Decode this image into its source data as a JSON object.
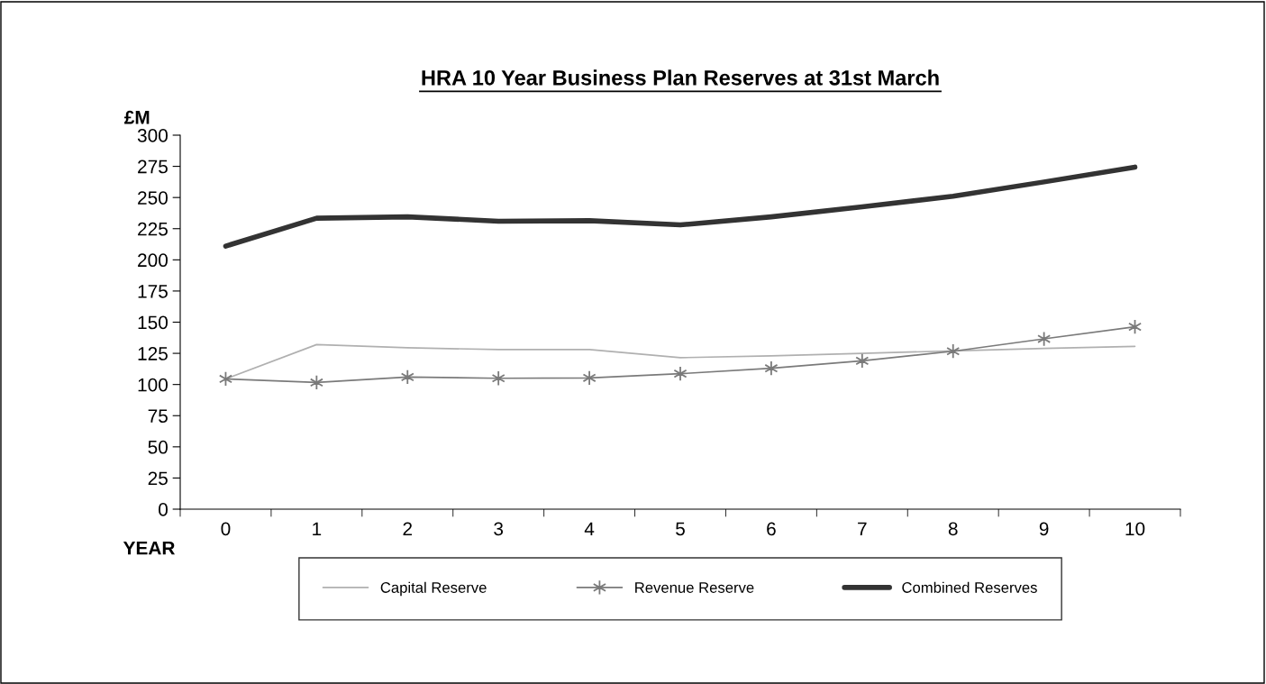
{
  "chart_data": {
    "type": "line",
    "title": "HRA 10 Year Business Plan Reserves at 31st March",
    "xlabel": "YEAR",
    "ylabel": "£M",
    "categories": [
      "0",
      "1",
      "2",
      "3",
      "4",
      "5",
      "6",
      "7",
      "8",
      "9",
      "10"
    ],
    "series": [
      {
        "name": "Capital Reserve",
        "color": "#b0b0b0",
        "marker": "none",
        "values": [
          104.5,
          132,
          129.5,
          128,
          128,
          121.5,
          123,
          125,
          127,
          129,
          130.6
        ]
      },
      {
        "name": "Revenue Reserve",
        "color": "#7a7a7a",
        "marker": "cross",
        "values": [
          104.5,
          101.6,
          106,
          105,
          105.3,
          108.7,
          113,
          119,
          126.7,
          136.6,
          146.3
        ]
      },
      {
        "name": "Combined Reserves",
        "color": "#333333",
        "marker": "none",
        "values": [
          211,
          233.4,
          234.5,
          231,
          231.4,
          228,
          234.5,
          242.5,
          251,
          262.5,
          274.4
        ]
      }
    ],
    "ylim": [
      0,
      300
    ],
    "yticks": [
      0,
      25,
      50,
      75,
      100,
      125,
      150,
      175,
      200,
      225,
      250,
      275,
      300
    ],
    "grid": false,
    "legend": "bottom",
    "line_style": "solid"
  }
}
